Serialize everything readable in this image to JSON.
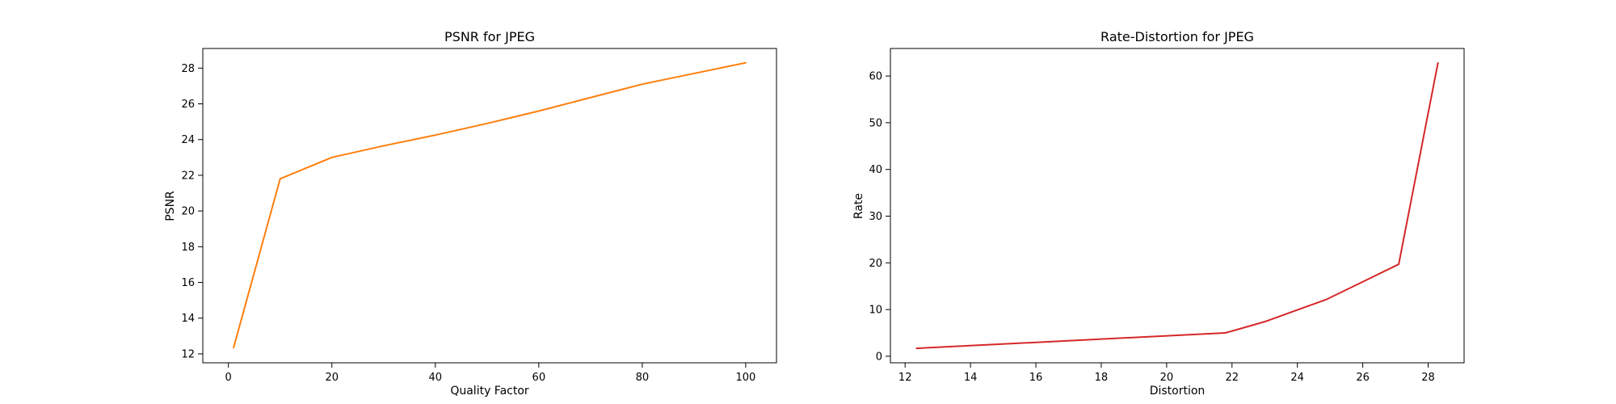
{
  "chart_data": [
    {
      "type": "line",
      "title": "PSNR for JPEG",
      "xlabel": "Quality Factor",
      "ylabel": "PSNR",
      "xlim": [
        -4.95,
        105.95
      ],
      "ylim": [
        11.5,
        29.1
      ],
      "xticks": [
        0,
        20,
        40,
        60,
        80,
        100
      ],
      "yticks": [
        12,
        14,
        16,
        18,
        20,
        22,
        24,
        26,
        28
      ],
      "grid": false,
      "series": [
        {
          "color": "#ff7f0e",
          "x": [
            1,
            10,
            20,
            30,
            40,
            50,
            60,
            70,
            80,
            90,
            100
          ],
          "y": [
            12.35,
            21.8,
            23.0,
            23.65,
            24.25,
            24.9,
            25.6,
            26.35,
            27.1,
            27.7,
            28.3
          ]
        }
      ]
    },
    {
      "type": "line",
      "title": "Rate-Distortion for JPEG",
      "xlabel": "Distortion",
      "ylabel": "Rate",
      "xlim": [
        11.55,
        29.1
      ],
      "ylim": [
        -1.4,
        65.9
      ],
      "xticks": [
        12,
        14,
        16,
        18,
        20,
        22,
        24,
        26,
        28
      ],
      "yticks": [
        0,
        10,
        20,
        30,
        40,
        50,
        60
      ],
      "grid": false,
      "series": [
        {
          "color": "#d62728",
          "x": [
            12.35,
            21.8,
            23.0,
            24.9,
            27.1,
            28.3
          ],
          "y": [
            1.7,
            5.0,
            7.4,
            12.2,
            19.7,
            62.8
          ]
        }
      ]
    }
  ]
}
